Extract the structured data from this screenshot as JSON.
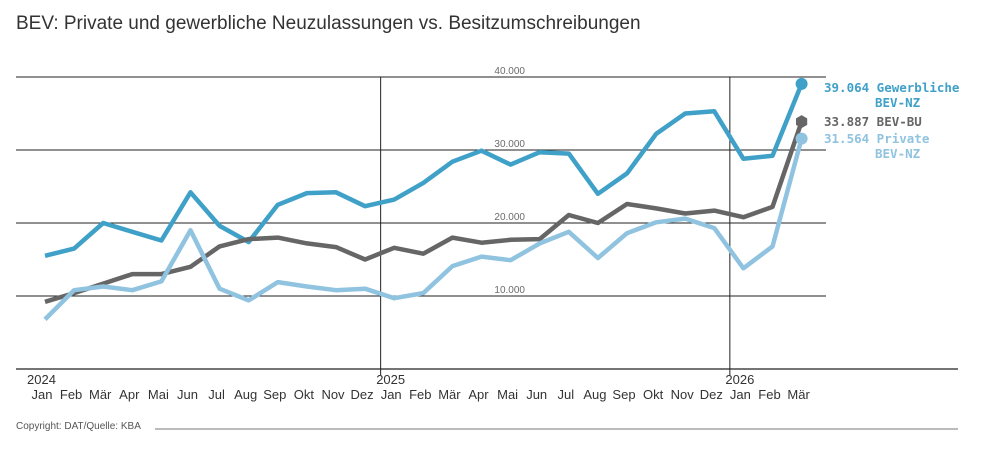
{
  "title": "BEV: Private und gewerbliche Neuzulassungen vs. Besitzumschreibungen",
  "footer": "Copyright: DAT/Quelle: KBA",
  "chart_data": {
    "type": "line",
    "title": "BEV: Private und gewerbliche Neuzulassungen vs. Besitzumschreibungen",
    "ylim": [
      0,
      40000
    ],
    "yticks": [
      10000,
      20000,
      30000,
      40000
    ],
    "ytick_labels": [
      "10.000",
      "20.000",
      "30.000",
      "40.000"
    ],
    "grid": true,
    "categories": [
      "Jan",
      "Feb",
      "Mär",
      "Apr",
      "Mai",
      "Jun",
      "Jul",
      "Aug",
      "Sep",
      "Okt",
      "Nov",
      "Dez",
      "Jan",
      "Feb",
      "Mär",
      "Apr",
      "Mai",
      "Jun",
      "Jul",
      "Aug",
      "Sep",
      "Okt",
      "Nov",
      "Dez",
      "Jan",
      "Feb",
      "Mär"
    ],
    "years": [
      {
        "label": "2024",
        "index": 0
      },
      {
        "label": "2025",
        "index": 12
      },
      {
        "label": "2026",
        "index": 24
      }
    ],
    "series": [
      {
        "name": "Gewerbliche BEV-NZ",
        "end_label": [
          "39.064 Gewerbliche",
          "BEV-NZ"
        ],
        "color": "#3fa0c8",
        "marker": "circle",
        "values": [
          15500,
          16500,
          20000,
          18800,
          17600,
          24200,
          19600,
          17400,
          22500,
          24100,
          24200,
          22300,
          23200,
          25500,
          28400,
          29900,
          28000,
          29700,
          29500,
          24000,
          26800,
          32200,
          35000,
          35300,
          28800,
          29200,
          39064
        ]
      },
      {
        "name": "BEV-BU",
        "end_label": [
          "33.887 BEV-BU"
        ],
        "color": "#666666",
        "marker": "hexagon",
        "values": [
          9200,
          10400,
          11700,
          13000,
          13000,
          14000,
          16800,
          17800,
          18000,
          17200,
          16700,
          15000,
          16600,
          15800,
          18000,
          17300,
          17700,
          17800,
          21100,
          20000,
          22600,
          22000,
          21300,
          21700,
          20800,
          22200,
          33887
        ]
      },
      {
        "name": "Private BEV-NZ",
        "end_label": [
          "31.564 Private",
          "BEV-NZ"
        ],
        "color": "#8fc3df",
        "marker": "circle",
        "values": [
          6800,
          10800,
          11300,
          10800,
          12000,
          19000,
          11000,
          9400,
          11900,
          11300,
          10800,
          11000,
          9700,
          10400,
          14100,
          15400,
          14900,
          17200,
          18800,
          15200,
          18600,
          20100,
          20600,
          19300,
          13800,
          16800,
          31564
        ]
      }
    ]
  }
}
